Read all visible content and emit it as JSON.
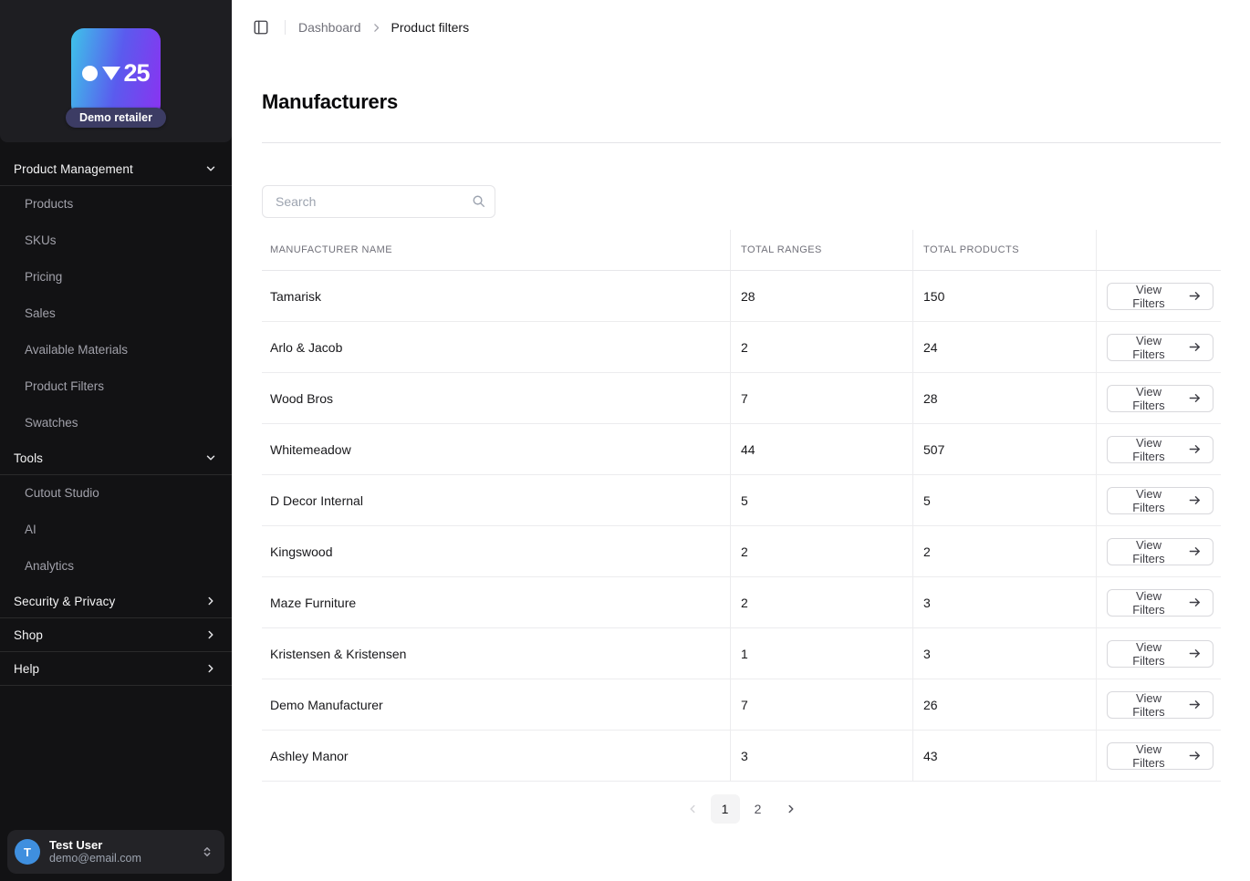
{
  "colors": {
    "logo-grad-start": "#3ec3e9",
    "logo-grad-mid": "#5a5bee",
    "logo-grad-end": "#8a33f0",
    "badge-bg": "#3c3c64",
    "avatar-bg": "#3f8fdf",
    "sidebar-bg": "#121214",
    "sidebar-header-bg": "#1e1e22",
    "pagination-active-bg": "#f4f4f5"
  },
  "sidebar": {
    "logo": {
      "number": "25",
      "badge": "Demo retailer"
    },
    "sections": [
      {
        "label": "Product Management",
        "expanded": true,
        "items": [
          "Products",
          "SKUs",
          "Pricing",
          "Sales",
          "Available Materials",
          "Product Filters",
          "Swatches"
        ]
      },
      {
        "label": "Tools",
        "expanded": true,
        "items": [
          "Cutout Studio",
          "AI",
          "Analytics"
        ]
      },
      {
        "label": "Security & Privacy",
        "expanded": false,
        "items": []
      },
      {
        "label": "Shop",
        "expanded": false,
        "items": []
      },
      {
        "label": "Help",
        "expanded": false,
        "items": []
      }
    ],
    "user": {
      "initial": "T",
      "name": "Test User",
      "email": "demo@email.com"
    }
  },
  "header": {
    "breadcrumb": [
      "Dashboard",
      "Product filters"
    ]
  },
  "page": {
    "title": "Manufacturers"
  },
  "search": {
    "placeholder": "Search",
    "value": ""
  },
  "table": {
    "columns": [
      "MANUFACTURER NAME",
      "TOTAL RANGES",
      "TOTAL PRODUCTS"
    ],
    "action_label": "View Filters",
    "rows": [
      {
        "name": "Tamarisk",
        "ranges": "28",
        "products": "150"
      },
      {
        "name": "Arlo & Jacob",
        "ranges": "2",
        "products": "24"
      },
      {
        "name": "Wood Bros",
        "ranges": "7",
        "products": "28"
      },
      {
        "name": "Whitemeadow",
        "ranges": "44",
        "products": "507"
      },
      {
        "name": "D Decor Internal",
        "ranges": "5",
        "products": "5"
      },
      {
        "name": "Kingswood",
        "ranges": "2",
        "products": "2"
      },
      {
        "name": "Maze Furniture",
        "ranges": "2",
        "products": "3"
      },
      {
        "name": "Kristensen & Kristensen",
        "ranges": "1",
        "products": "3"
      },
      {
        "name": "Demo Manufacturer",
        "ranges": "7",
        "products": "26"
      },
      {
        "name": "Ashley Manor",
        "ranges": "3",
        "products": "43"
      }
    ]
  },
  "pagination": {
    "prev_enabled": false,
    "pages": [
      "1",
      "2"
    ],
    "current": "1",
    "next_enabled": true
  }
}
